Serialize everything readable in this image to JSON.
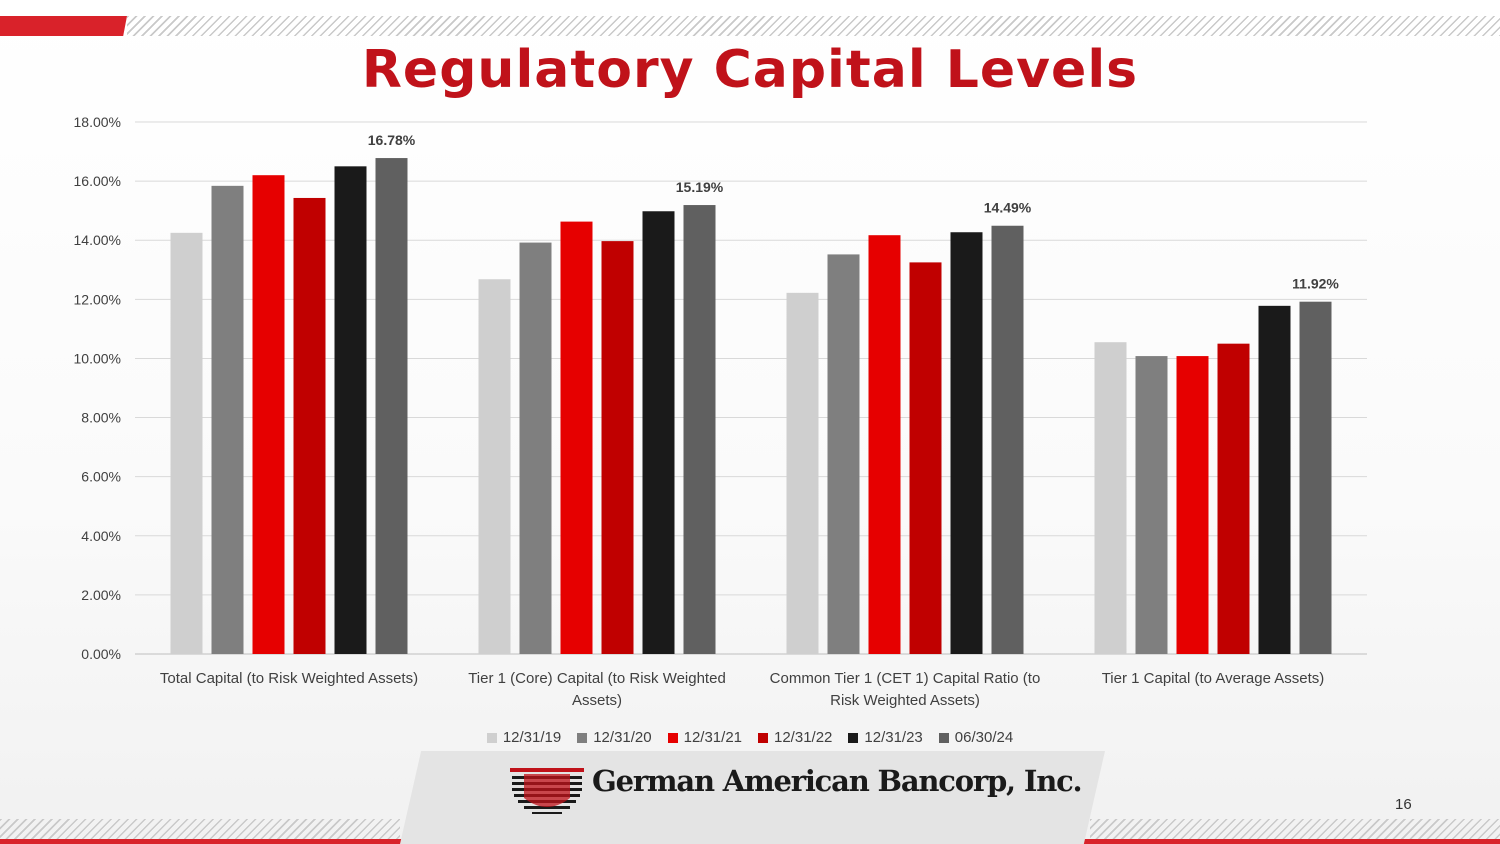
{
  "slide": {
    "title": "Regulatory Capital Levels",
    "company": "German American Bancorp, Inc.",
    "page_number": "16"
  },
  "colors": {
    "brand_red": "#d9222a",
    "title_red": "#c0121a",
    "series": [
      "#cfcfcf",
      "#7f7f7f",
      "#e60000",
      "#c00000",
      "#1a1a1a",
      "#606060"
    ]
  },
  "chart_data": {
    "type": "bar",
    "categories": [
      [
        "Total Capital (to Risk Weighted Assets)"
      ],
      [
        "Tier 1 (Core) Capital (to Risk Weighted",
        "Assets)"
      ],
      [
        "Common Tier 1 (CET 1) Capital Ratio (to",
        "Risk Weighted Assets)"
      ],
      [
        "Tier 1 Capital (to Average Assets)"
      ]
    ],
    "series": [
      {
        "name": "12/31/19",
        "values": [
          14.25,
          12.68,
          12.22,
          10.55
        ]
      },
      {
        "name": "12/31/20",
        "values": [
          15.84,
          13.92,
          13.52,
          10.08
        ]
      },
      {
        "name": "12/31/21",
        "values": [
          16.2,
          14.63,
          14.17,
          10.08
        ]
      },
      {
        "name": "12/31/22",
        "values": [
          15.43,
          13.97,
          13.25,
          10.5
        ]
      },
      {
        "name": "12/31/23",
        "values": [
          16.5,
          14.98,
          14.27,
          11.78
        ]
      },
      {
        "name": "06/30/24",
        "values": [
          16.78,
          15.19,
          14.49,
          11.92
        ]
      }
    ],
    "data_labels": [
      "16.78%",
      "15.19%",
      "14.49%",
      "11.92%"
    ],
    "y_ticks": [
      "0.00%",
      "2.00%",
      "4.00%",
      "6.00%",
      "8.00%",
      "10.00%",
      "12.00%",
      "14.00%",
      "16.00%",
      "18.00%"
    ],
    "ylim": [
      0,
      18
    ],
    "grid": true,
    "legend_position": "bottom"
  }
}
